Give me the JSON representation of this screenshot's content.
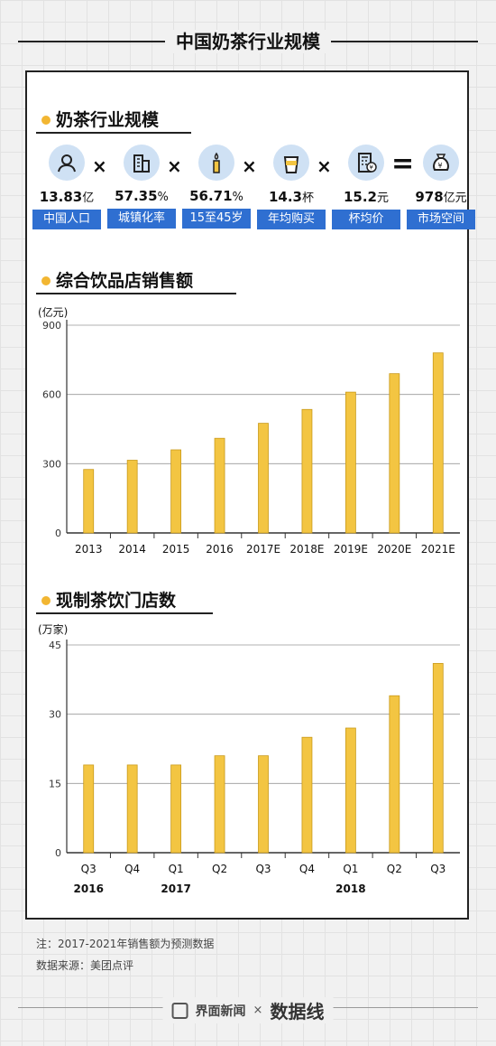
{
  "page_title": "中国奶茶行业规模",
  "section1": {
    "title": "奶茶行业规模",
    "factors": [
      {
        "icon": "people-icon",
        "value": "13.83",
        "unit": "亿",
        "label": "中国人口"
      },
      {
        "icon": "buildings-icon",
        "value": "57.35",
        "unit": "%",
        "label": "城镇化率"
      },
      {
        "icon": "candle-icon",
        "value": "56.71",
        "unit": "%",
        "label": "15至45岁"
      },
      {
        "icon": "cup-icon",
        "value": "14.3",
        "unit": "杯",
        "label": "年均购买"
      },
      {
        "icon": "calculator-icon",
        "value": "15.2",
        "unit": "元",
        "label": "杯均价"
      },
      {
        "icon": "money-bag-icon",
        "value": "978",
        "unit": "亿元",
        "label": "市场空间"
      }
    ],
    "operators": [
      "×",
      "×",
      "×",
      "×",
      "="
    ]
  },
  "chart_data": [
    {
      "type": "bar",
      "title": "综合饮品店销售额",
      "unit": "(亿元)",
      "categories": [
        "2013",
        "2014",
        "2015",
        "2016",
        "2017E",
        "2018E",
        "2019E",
        "2020E",
        "2021E"
      ],
      "values": [
        275,
        315,
        360,
        410,
        475,
        535,
        610,
        690,
        780
      ],
      "ylim": [
        0,
        900
      ],
      "yticks": [
        0,
        300,
        600,
        900
      ],
      "grid": true
    },
    {
      "type": "bar",
      "title": "现制茶饮门店数",
      "unit": "(万家)",
      "categories": [
        "Q3",
        "Q4",
        "Q1",
        "Q2",
        "Q3",
        "Q4",
        "Q1",
        "Q2",
        "Q3"
      ],
      "group_labels": [
        {
          "label": "2016",
          "index": 0
        },
        {
          "label": "2017",
          "index": 2
        },
        {
          "label": "2018",
          "index": 6
        }
      ],
      "values": [
        19,
        19,
        19,
        21,
        21,
        25,
        27,
        34,
        41
      ],
      "ylim": [
        0,
        45
      ],
      "yticks": [
        0,
        15,
        30,
        45
      ],
      "grid": true
    }
  ],
  "colors": {
    "bar": "#f3c542",
    "bar_stroke": "#c99a1a",
    "label_bg": "#2f6fd1",
    "icon_bg": "#cfe1f4",
    "dot": "#f2b632"
  },
  "notes": {
    "note": "注：2017-2021年销售额为预测数据",
    "source": "数据来源：美团点评"
  },
  "brand": {
    "left": "界面新闻",
    "sep": "×",
    "right": "数据线"
  }
}
